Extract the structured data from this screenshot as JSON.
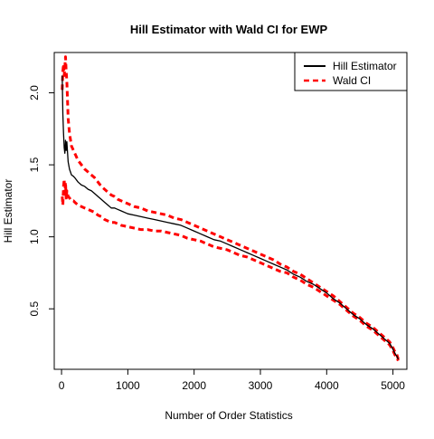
{
  "chart_data": {
    "type": "line",
    "title": "Hill Estimator with Wald CI for EWP",
    "xlabel": "Number of Order Statistics",
    "ylabel": "Hill Estimator",
    "xlim": [
      -110,
      5210
    ],
    "ylim": [
      0.08,
      2.28
    ],
    "x_ticks": [
      0,
      1000,
      2000,
      3000,
      4000,
      5000
    ],
    "y_ticks": [
      0.5,
      1.0,
      1.5,
      2.0
    ],
    "x_tick_labels": [
      "0",
      "1000",
      "2000",
      "3000",
      "4000",
      "5000"
    ],
    "y_tick_labels": [
      "0.5",
      "1.0",
      "1.5",
      "2.0"
    ],
    "legend_position": "top-right",
    "series": [
      {
        "name": "Hill Estimator",
        "color": "#000000",
        "style": "solid",
        "x": [
          10,
          20,
          30,
          40,
          50,
          60,
          70,
          80,
          100,
          120,
          150,
          180,
          200,
          250,
          300,
          350,
          400,
          450,
          500,
          550,
          600,
          650,
          700,
          750,
          800,
          850,
          900,
          1000,
          1100,
          1200,
          1300,
          1400,
          1500,
          1600,
          1700,
          1800,
          1900,
          2000,
          2100,
          2200,
          2300,
          2400,
          2500,
          2600,
          2700,
          2800,
          2900,
          3000,
          3100,
          3200,
          3300,
          3400,
          3500,
          3600,
          3700,
          3800,
          3900,
          4000,
          4100,
          4200,
          4300,
          4400,
          4500,
          4600,
          4700,
          4800,
          4900,
          4950,
          5000,
          5030,
          5060,
          5080
        ],
        "y": [
          2.12,
          1.85,
          1.72,
          1.62,
          1.58,
          1.67,
          1.6,
          1.66,
          1.52,
          1.47,
          1.43,
          1.42,
          1.41,
          1.38,
          1.36,
          1.35,
          1.33,
          1.32,
          1.3,
          1.28,
          1.26,
          1.24,
          1.22,
          1.2,
          1.2,
          1.19,
          1.18,
          1.16,
          1.15,
          1.14,
          1.13,
          1.12,
          1.11,
          1.1,
          1.09,
          1.08,
          1.06,
          1.04,
          1.02,
          1.0,
          0.98,
          0.97,
          0.95,
          0.93,
          0.91,
          0.89,
          0.87,
          0.85,
          0.83,
          0.81,
          0.79,
          0.77,
          0.74,
          0.72,
          0.69,
          0.67,
          0.64,
          0.61,
          0.57,
          0.54,
          0.5,
          0.46,
          0.43,
          0.39,
          0.36,
          0.32,
          0.28,
          0.26,
          0.22,
          0.19,
          0.17,
          0.15
        ]
      },
      {
        "name": "Wald CI",
        "color": "#ff0000",
        "style": "dashed",
        "x": [
          10,
          20,
          30,
          40,
          50,
          60,
          70,
          80,
          100,
          120,
          150,
          180,
          200,
          250,
          300,
          350,
          400,
          450,
          500,
          550,
          600,
          650,
          700,
          750,
          800,
          850,
          900,
          1000,
          1100,
          1200,
          1300,
          1400,
          1500,
          1600,
          1700,
          1800,
          1900,
          2000,
          2100,
          2200,
          2300,
          2400,
          2500,
          2600,
          2700,
          2800,
          2900,
          3000,
          3100,
          3200,
          3300,
          3400,
          3500,
          3600,
          3700,
          3800,
          3900,
          4000,
          4100,
          4200,
          4300,
          4400,
          4500,
          4600,
          4700,
          4800,
          4900,
          4950,
          5000,
          5030,
          5060,
          5080
        ],
        "y": [
          2.02,
          2.15,
          2.2,
          2.12,
          2.18,
          2.25,
          2.15,
          2.08,
          1.82,
          1.72,
          1.63,
          1.6,
          1.58,
          1.53,
          1.5,
          1.47,
          1.45,
          1.43,
          1.41,
          1.38,
          1.35,
          1.33,
          1.31,
          1.29,
          1.28,
          1.26,
          1.25,
          1.23,
          1.21,
          1.2,
          1.18,
          1.17,
          1.16,
          1.15,
          1.13,
          1.12,
          1.1,
          1.08,
          1.06,
          1.04,
          1.02,
          1.0,
          0.98,
          0.96,
          0.94,
          0.92,
          0.9,
          0.88,
          0.86,
          0.84,
          0.81,
          0.79,
          0.76,
          0.74,
          0.71,
          0.68,
          0.65,
          0.62,
          0.59,
          0.55,
          0.51,
          0.47,
          0.44,
          0.4,
          0.37,
          0.33,
          0.29,
          0.27,
          0.23,
          0.2,
          0.18,
          0.15
        ]
      },
      {
        "name": "Wald CI",
        "color": "#ff0000",
        "style": "dashed",
        "x": [
          10,
          20,
          30,
          40,
          50,
          60,
          70,
          80,
          100,
          120,
          150,
          180,
          200,
          250,
          300,
          350,
          400,
          450,
          500,
          550,
          600,
          650,
          700,
          750,
          800,
          850,
          900,
          1000,
          1100,
          1200,
          1300,
          1400,
          1500,
          1600,
          1700,
          1800,
          1900,
          2000,
          2100,
          2200,
          2300,
          2400,
          2500,
          2600,
          2700,
          2800,
          2900,
          3000,
          3100,
          3200,
          3300,
          3400,
          3500,
          3600,
          3700,
          3800,
          3900,
          4000,
          4100,
          4200,
          4300,
          4400,
          4500,
          4600,
          4700,
          4800,
          4900,
          4950,
          5000,
          5030,
          5060,
          5080
        ],
        "y": [
          1.28,
          1.22,
          1.35,
          1.4,
          1.3,
          1.38,
          1.26,
          1.32,
          1.28,
          1.27,
          1.25,
          1.25,
          1.24,
          1.22,
          1.21,
          1.2,
          1.19,
          1.18,
          1.17,
          1.15,
          1.14,
          1.12,
          1.11,
          1.1,
          1.1,
          1.09,
          1.08,
          1.07,
          1.06,
          1.05,
          1.05,
          1.04,
          1.04,
          1.03,
          1.02,
          1.01,
          0.99,
          0.98,
          0.97,
          0.95,
          0.93,
          0.92,
          0.91,
          0.89,
          0.87,
          0.86,
          0.84,
          0.82,
          0.8,
          0.78,
          0.76,
          0.75,
          0.72,
          0.7,
          0.67,
          0.65,
          0.62,
          0.59,
          0.56,
          0.53,
          0.49,
          0.45,
          0.42,
          0.38,
          0.35,
          0.31,
          0.27,
          0.25,
          0.21,
          0.18,
          0.16,
          0.14
        ]
      }
    ]
  }
}
